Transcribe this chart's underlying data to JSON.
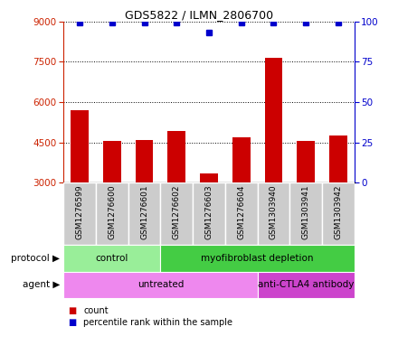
{
  "title": "GDS5822 / ILMN_2806700",
  "samples": [
    "GSM1276599",
    "GSM1276600",
    "GSM1276601",
    "GSM1276602",
    "GSM1276603",
    "GSM1276604",
    "GSM1303940",
    "GSM1303941",
    "GSM1303942"
  ],
  "counts": [
    5700,
    4550,
    4580,
    4920,
    3350,
    4700,
    7650,
    4550,
    4750
  ],
  "percentiles": [
    99,
    99,
    99,
    99,
    93,
    99,
    99,
    99,
    99
  ],
  "ylim_left": [
    3000,
    9000
  ],
  "ylim_right": [
    0,
    100
  ],
  "yticks_left": [
    3000,
    4500,
    6000,
    7500,
    9000
  ],
  "yticks_right": [
    0,
    25,
    50,
    75,
    100
  ],
  "bar_color": "#cc0000",
  "dot_color": "#0000cc",
  "protocol_groups": [
    {
      "label": "control",
      "start": 0,
      "end": 3,
      "color": "#99ee99"
    },
    {
      "label": "myofibroblast depletion",
      "start": 3,
      "end": 9,
      "color": "#44cc44"
    }
  ],
  "agent_groups": [
    {
      "label": "untreated",
      "start": 0,
      "end": 6,
      "color": "#ee88ee"
    },
    {
      "label": "anti-CTLA4 antibody",
      "start": 6,
      "end": 9,
      "color": "#cc44cc"
    }
  ],
  "legend_count_label": "count",
  "legend_pct_label": "percentile rank within the sample",
  "protocol_label": "protocol",
  "agent_label": "agent",
  "background_color": "#ffffff"
}
